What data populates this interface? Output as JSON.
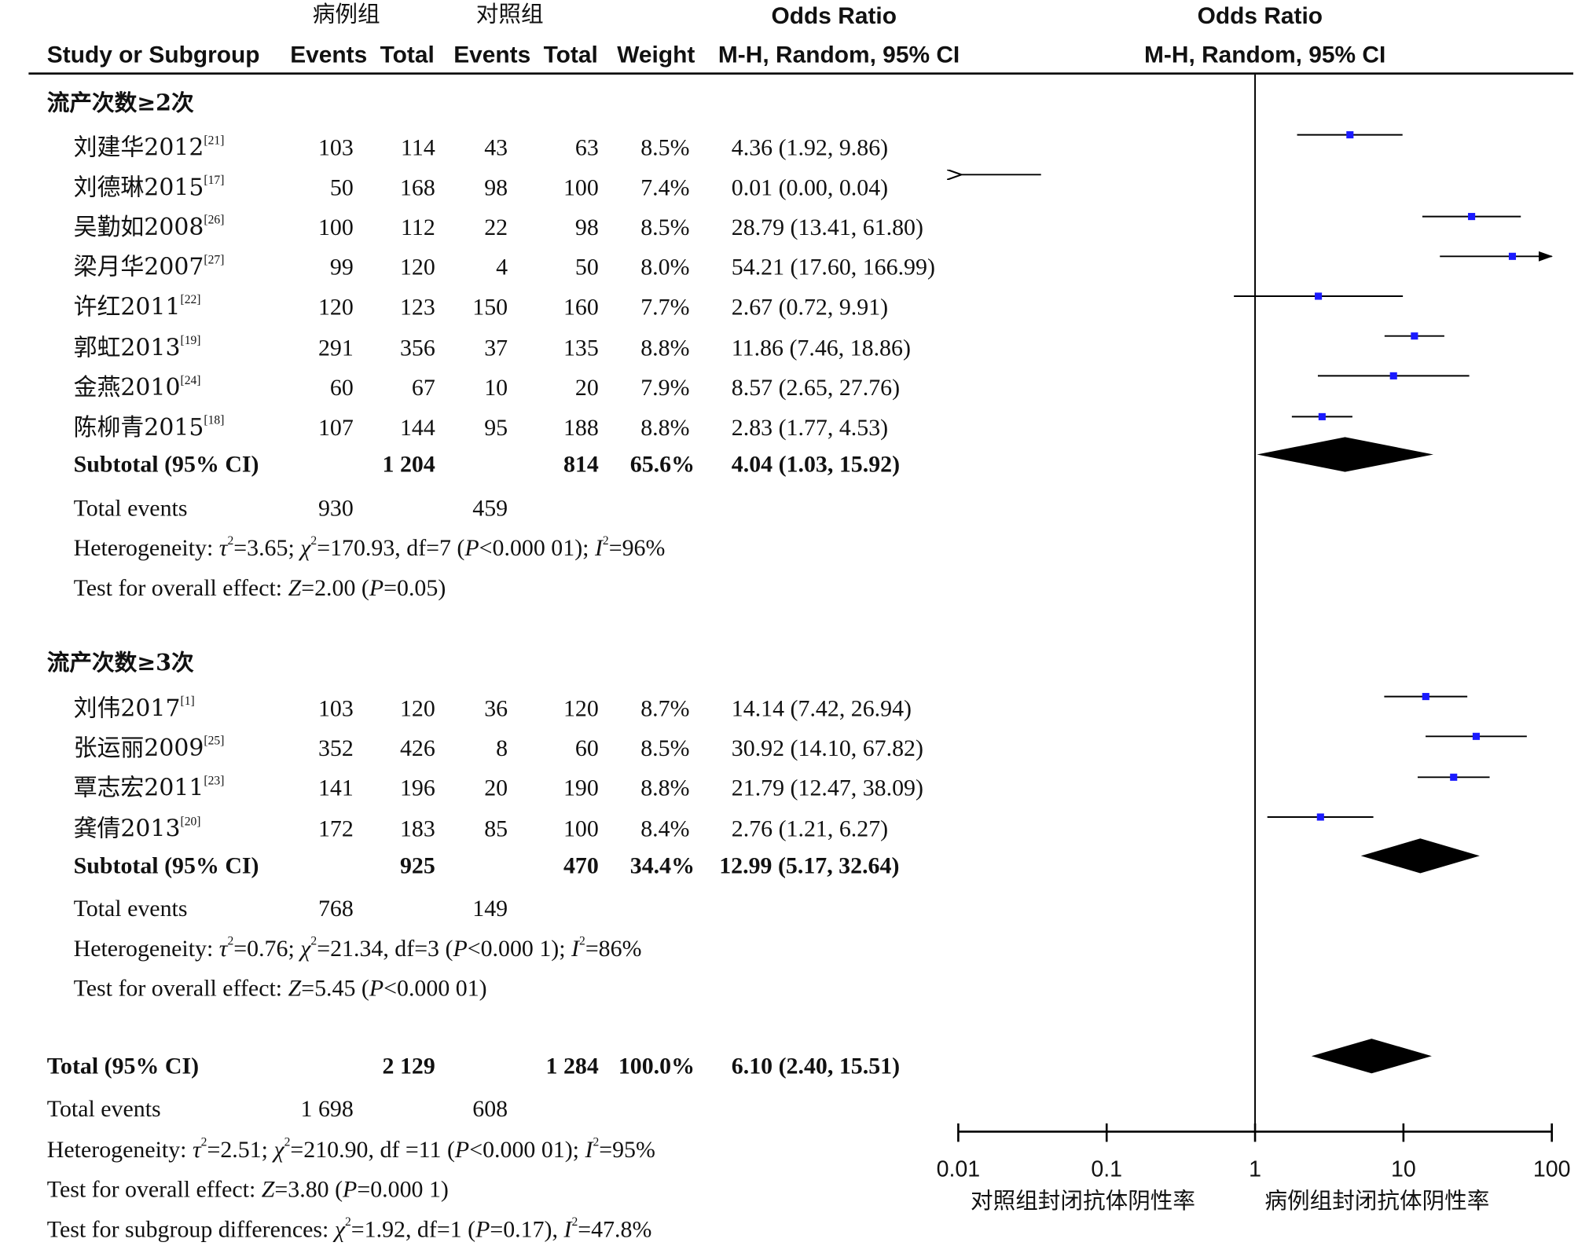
{
  "header": {
    "case_group": "病例组",
    "control_group": "对照组",
    "odds_ratio": "Odds Ratio",
    "odds_ratio_plot": "Odds Ratio",
    "study_col": "Study or Subgroup",
    "events1": "Events",
    "total1": "Total",
    "events2": "Events",
    "total2": "Total",
    "weight": "Weight",
    "method": "M-H, Random, 95% CI",
    "method_plot": "M-H, Random, 95% CI"
  },
  "subgroups": [
    {
      "title": "流产次数≥2次",
      "studies": [
        {
          "name": "刘建华2012",
          "ref": "[21]",
          "e1": "103",
          "n1": "114",
          "e2": "43",
          "n2": "63",
          "weight": "8.5%",
          "ci": "4.36 (1.92, 9.86)"
        },
        {
          "name": "刘德琳2015",
          "ref": "[17]",
          "e1": "50",
          "n1": "168",
          "e2": "98",
          "n2": "100",
          "weight": "7.4%",
          "ci": "0.01 (0.00, 0.04)"
        },
        {
          "name": "吴勤如2008",
          "ref": "[26]",
          "e1": "100",
          "n1": "112",
          "e2": "22",
          "n2": "98",
          "weight": "8.5%",
          "ci": "28.79 (13.41, 61.80)"
        },
        {
          "name": "梁月华2007",
          "ref": "[27]",
          "e1": "99",
          "n1": "120",
          "e2": "4",
          "n2": "50",
          "weight": "8.0%",
          "ci": "54.21 (17.60, 166.99)"
        },
        {
          "name": "许红2011",
          "ref": "[22]",
          "e1": "120",
          "n1": "123",
          "e2": "150",
          "n2": "160",
          "weight": "7.7%",
          "ci": "2.67 (0.72, 9.91)"
        },
        {
          "name": "郭虹2013",
          "ref": "[19]",
          "e1": "291",
          "n1": "356",
          "e2": "37",
          "n2": "135",
          "weight": "8.8%",
          "ci": "11.86 (7.46, 18.86)"
        },
        {
          "name": "金燕2010",
          "ref": "[24]",
          "e1": "60",
          "n1": "67",
          "e2": "10",
          "n2": "20",
          "weight": "7.9%",
          "ci": "8.57 (2.65, 27.76)"
        },
        {
          "name": "陈柳青2015",
          "ref": "[18]",
          "e1": "107",
          "n1": "144",
          "e2": "95",
          "n2": "188",
          "weight": "8.8%",
          "ci": "2.83 (1.77, 4.53)"
        }
      ],
      "subtotal": {
        "label": "Subtotal (95% CI)",
        "n1": "1 204",
        "n2": "814",
        "weight": "65.6%",
        "ci": "4.04 (1.03, 15.92)"
      },
      "total_events": {
        "label": "Total events",
        "e1": "930",
        "e2": "459"
      },
      "heterogeneity": {
        "prefix": "Heterogeneity: ",
        "tau": "τ",
        "tau_val": "=3.65; ",
        "chi": "χ",
        "chi_val": "=170.93, df=7 (",
        "p": "P",
        "p_val": "<0.000 01); ",
        "i": "I",
        "i_val": "=96%"
      },
      "overall": {
        "prefix": "Test for overall effect: ",
        "z": "Z",
        "z_val": "=2.00 (",
        "p": "P",
        "p_val": "=0.05)"
      }
    },
    {
      "title": "流产次数≥3次",
      "studies": [
        {
          "name": "刘伟2017",
          "ref": "[1]",
          "e1": "103",
          "n1": "120",
          "e2": "36",
          "n2": "120",
          "weight": "8.7%",
          "ci": "14.14 (7.42, 26.94)"
        },
        {
          "name": "张运丽2009",
          "ref": "[25]",
          "e1": "352",
          "n1": "426",
          "e2": "8",
          "n2": "60",
          "weight": "8.5%",
          "ci": "30.92 (14.10, 67.82)"
        },
        {
          "name": "覃志宏2011",
          "ref": "[23]",
          "e1": "141",
          "n1": "196",
          "e2": "20",
          "n2": "190",
          "weight": "8.8%",
          "ci": "21.79 (12.47, 38.09)"
        },
        {
          "name": "龚倩2013",
          "ref": "[20]",
          "e1": "172",
          "n1": "183",
          "e2": "85",
          "n2": "100",
          "weight": "8.4%",
          "ci": "2.76 (1.21, 6.27)"
        }
      ],
      "subtotal": {
        "label": "Subtotal (95% CI)",
        "n1": "925",
        "n2": "470",
        "weight": "34.4%",
        "ci": "12.99 (5.17, 32.64)"
      },
      "total_events": {
        "label": "Total events",
        "e1": "768",
        "e2": "149"
      },
      "heterogeneity": {
        "prefix": "Heterogeneity: ",
        "tau": "τ",
        "tau_val": "=0.76; ",
        "chi": "χ",
        "chi_val": "=21.34, df=3 (",
        "p": "P",
        "p_val": "<0.000 1); ",
        "i": "I",
        "i_val": "=86%"
      },
      "overall": {
        "prefix": "Test for overall effect: ",
        "z": "Z",
        "z_val": "=5.45 (",
        "p": "P",
        "p_val": "<0.000 01)"
      }
    }
  ],
  "total": {
    "label": "Total (95% CI)",
    "n1": "2 129",
    "n2": "1 284",
    "weight": "100.0%",
    "ci": "6.10 (2.40, 15.51)"
  },
  "total_events": {
    "label": "Total events",
    "e1": "1 698",
    "e2": "608"
  },
  "heterogeneity": {
    "prefix": "Heterogeneity: ",
    "tau": "τ",
    "tau_val": "=2.51; ",
    "chi": "χ",
    "chi_val": "=210.90, df =11 (",
    "p": "P",
    "p_val": "<0.000 01); ",
    "i": "I",
    "i_val": "=95%"
  },
  "overall": {
    "prefix": "Test for overall effect: ",
    "z": "Z",
    "z_val": "=3.80 (",
    "p": "P",
    "p_val": "=0.000 1)"
  },
  "subgroup_diff": {
    "prefix": "Test for subgroup differences: ",
    "chi": "χ",
    "chi_val": "=1.92, df=1 (",
    "p": "P",
    "p_val": "=0.17), ",
    "i": "I",
    "i_val": "=47.8%"
  },
  "superscript_two": "2",
  "axis": {
    "ticks": [
      "0.01",
      "0.1",
      "1",
      "10",
      "100"
    ],
    "left_label": "对照组封闭抗体阴性率",
    "right_label": "病例组封闭抗体阴性率"
  },
  "colors": {
    "point": "#1a1aff",
    "diamond": "#000000",
    "line": "#000000"
  },
  "chart_data": {
    "type": "forest",
    "scale": "log",
    "xlim": [
      0.01,
      100
    ],
    "reference_line": 1,
    "series": [
      {
        "name": "流产次数≥2次",
        "points": [
          {
            "label": "刘建华2012",
            "or": 4.36,
            "lo": 1.92,
            "hi": 9.86
          },
          {
            "label": "刘德琳2015",
            "or": 0.01,
            "lo": 0.0,
            "hi": 0.04
          },
          {
            "label": "吴勤如2008",
            "or": 28.79,
            "lo": 13.41,
            "hi": 61.8
          },
          {
            "label": "梁月华2007",
            "or": 54.21,
            "lo": 17.6,
            "hi": 166.99
          },
          {
            "label": "许红2011",
            "or": 2.67,
            "lo": 0.72,
            "hi": 9.91
          },
          {
            "label": "郭虹2013",
            "or": 11.86,
            "lo": 7.46,
            "hi": 18.86
          },
          {
            "label": "金燕2010",
            "or": 8.57,
            "lo": 2.65,
            "hi": 27.76
          },
          {
            "label": "陈柳青2015",
            "or": 2.83,
            "lo": 1.77,
            "hi": 4.53
          }
        ],
        "subtotal": {
          "or": 4.04,
          "lo": 1.03,
          "hi": 15.92
        }
      },
      {
        "name": "流产次数≥3次",
        "points": [
          {
            "label": "刘伟2017",
            "or": 14.14,
            "lo": 7.42,
            "hi": 26.94
          },
          {
            "label": "张运丽2009",
            "or": 30.92,
            "lo": 14.1,
            "hi": 67.82
          },
          {
            "label": "覃志宏2011",
            "or": 21.79,
            "lo": 12.47,
            "hi": 38.09
          },
          {
            "label": "龚倩2013",
            "or": 2.76,
            "lo": 1.21,
            "hi": 6.27
          }
        ],
        "subtotal": {
          "or": 12.99,
          "lo": 5.17,
          "hi": 32.64
        }
      }
    ],
    "total": {
      "or": 6.1,
      "lo": 2.4,
      "hi": 15.51
    }
  }
}
